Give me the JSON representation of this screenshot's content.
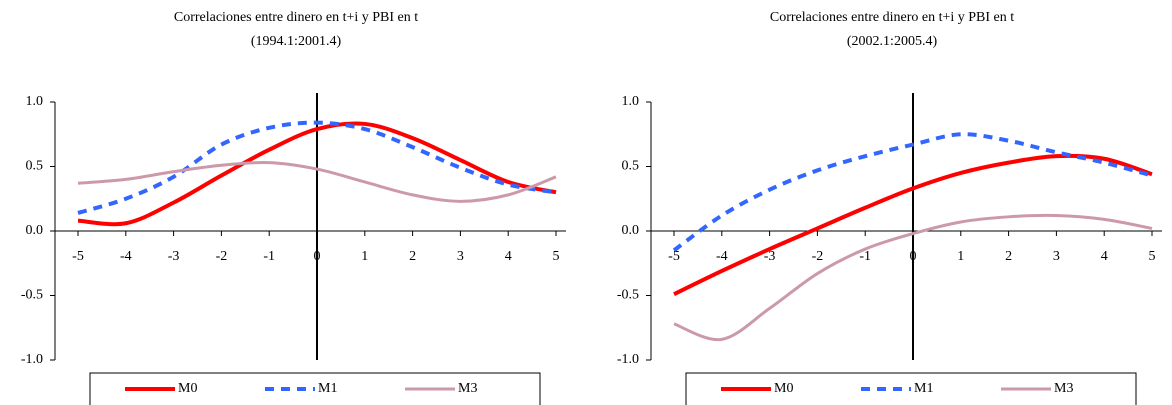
{
  "chart_data": [
    {
      "type": "line",
      "title": "Correlaciones entre dinero en t+i y  PBI en t",
      "subtitle": "(1994.1:2001.4)",
      "x": [
        -5,
        -4,
        -3,
        -2,
        -1,
        0,
        1,
        2,
        3,
        4,
        5
      ],
      "xlim": [
        -5,
        5
      ],
      "xticks": [
        -5,
        -4,
        -3,
        -2,
        -1,
        0,
        1,
        2,
        3,
        4,
        5
      ],
      "ylim": [
        -1,
        1
      ],
      "yticks": [
        {
          "value": -1,
          "label": "-1.0"
        },
        {
          "value": -0.5,
          "label": "-0.5"
        },
        {
          "value": 0,
          "label": "0.0"
        },
        {
          "value": 0.5,
          "label": "0.5"
        },
        {
          "value": 1,
          "label": "1.0"
        }
      ],
      "series": [
        {
          "name": "M0",
          "color": "#ff0000",
          "values": [
            0.08,
            0.06,
            0.22,
            0.43,
            0.63,
            0.79,
            0.83,
            0.72,
            0.55,
            0.38,
            0.3
          ]
        },
        {
          "name": "M1",
          "color": "#3366ff",
          "values": [
            0.14,
            0.25,
            0.42,
            0.67,
            0.8,
            0.84,
            0.79,
            0.65,
            0.49,
            0.36,
            0.3
          ]
        },
        {
          "name": "M3",
          "color": "#cc99aa",
          "values": [
            0.37,
            0.4,
            0.46,
            0.51,
            0.53,
            0.48,
            0.38,
            0.28,
            0.23,
            0.28,
            0.42
          ]
        }
      ]
    },
    {
      "type": "line",
      "title": "Correlaciones entre dinero en t+i y  PBI en t",
      "subtitle": "(2002.1:2005.4)",
      "x": [
        -5,
        -4,
        -3,
        -2,
        -1,
        0,
        1,
        2,
        3,
        4,
        5
      ],
      "xlim": [
        -5,
        5
      ],
      "xticks": [
        -5,
        -4,
        -3,
        -2,
        -1,
        0,
        1,
        2,
        3,
        4,
        5
      ],
      "ylim": [
        -1,
        1
      ],
      "yticks": [
        {
          "value": -1,
          "label": "-1.0"
        },
        {
          "value": -0.5,
          "label": "-0.5"
        },
        {
          "value": 0,
          "label": "0.0"
        },
        {
          "value": 0.5,
          "label": "0.5"
        },
        {
          "value": 1,
          "label": "1.0"
        }
      ],
      "series": [
        {
          "name": "M0",
          "color": "#ff0000",
          "values": [
            -0.49,
            -0.31,
            -0.14,
            0.02,
            0.18,
            0.33,
            0.45,
            0.53,
            0.58,
            0.56,
            0.44
          ]
        },
        {
          "name": "M1",
          "color": "#3366ff",
          "values": [
            -0.15,
            0.12,
            0.32,
            0.47,
            0.58,
            0.67,
            0.75,
            0.7,
            0.61,
            0.53,
            0.43
          ]
        },
        {
          "name": "M3",
          "color": "#cc99aa",
          "values": [
            -0.72,
            -0.84,
            -0.6,
            -0.33,
            -0.14,
            -0.02,
            0.07,
            0.11,
            0.12,
            0.09,
            0.02
          ]
        }
      ]
    }
  ]
}
